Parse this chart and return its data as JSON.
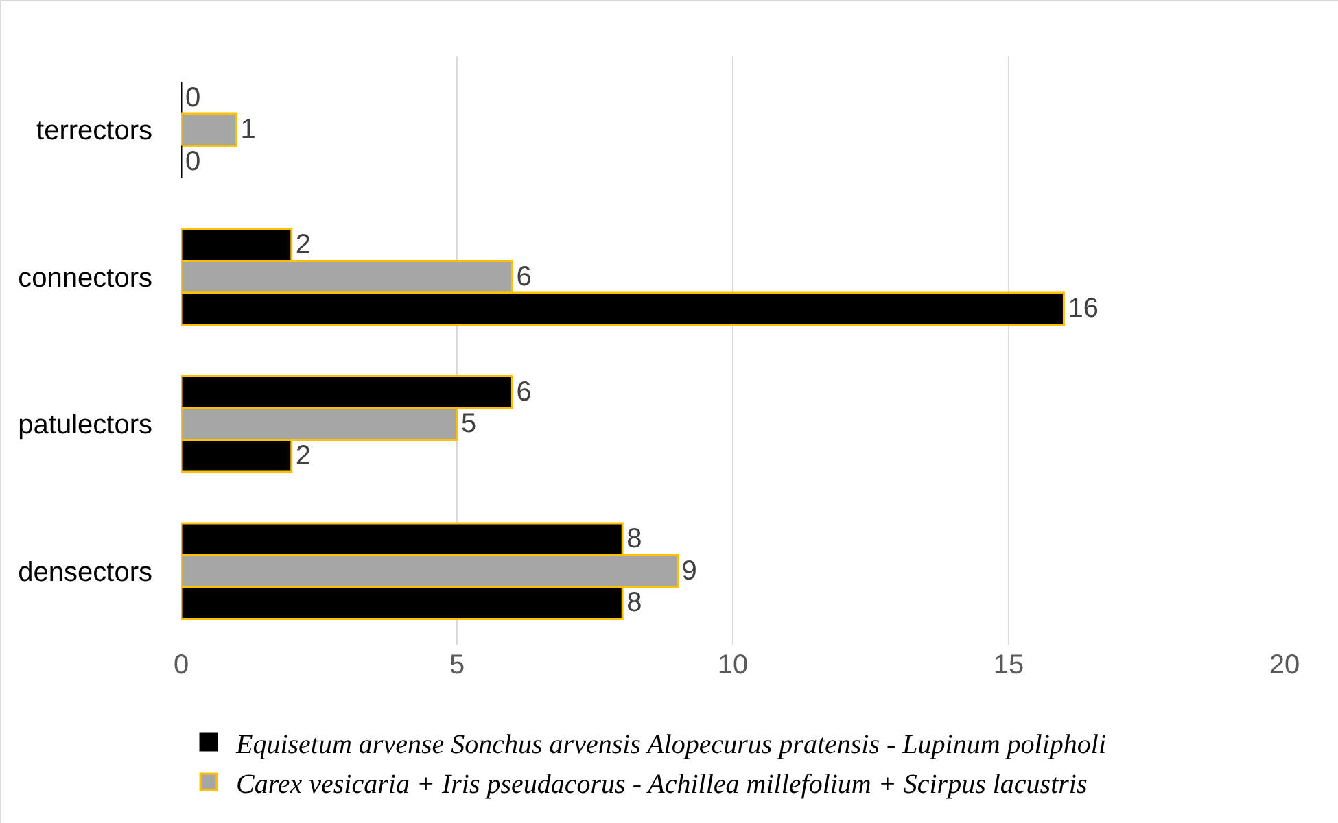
{
  "chart_data": {
    "type": "bar",
    "orientation": "horizontal",
    "categories": [
      "terrectors",
      "connectors",
      "patulectors",
      "densectors"
    ],
    "series": [
      {
        "name": "Equisetum arvense Sonchus arvensis Alopecurus pratensis - Lupinum polipholi",
        "color": "#000000",
        "values": [
          0,
          2,
          6,
          8
        ]
      },
      {
        "name": "Carex vesicaria + Iris pseudacorus - Achillea millefolium + Scirpus lacustris",
        "color": "#a6a6a6",
        "values": [
          1,
          6,
          5,
          9
        ]
      },
      {
        "color": "#000000",
        "values": [
          0,
          16,
          2,
          8
        ]
      }
    ],
    "xlim": [
      0,
      20
    ],
    "xticks": [
      0,
      5,
      10,
      15,
      20
    ],
    "grid": "x",
    "legend": "bottom",
    "data_labels": true
  }
}
